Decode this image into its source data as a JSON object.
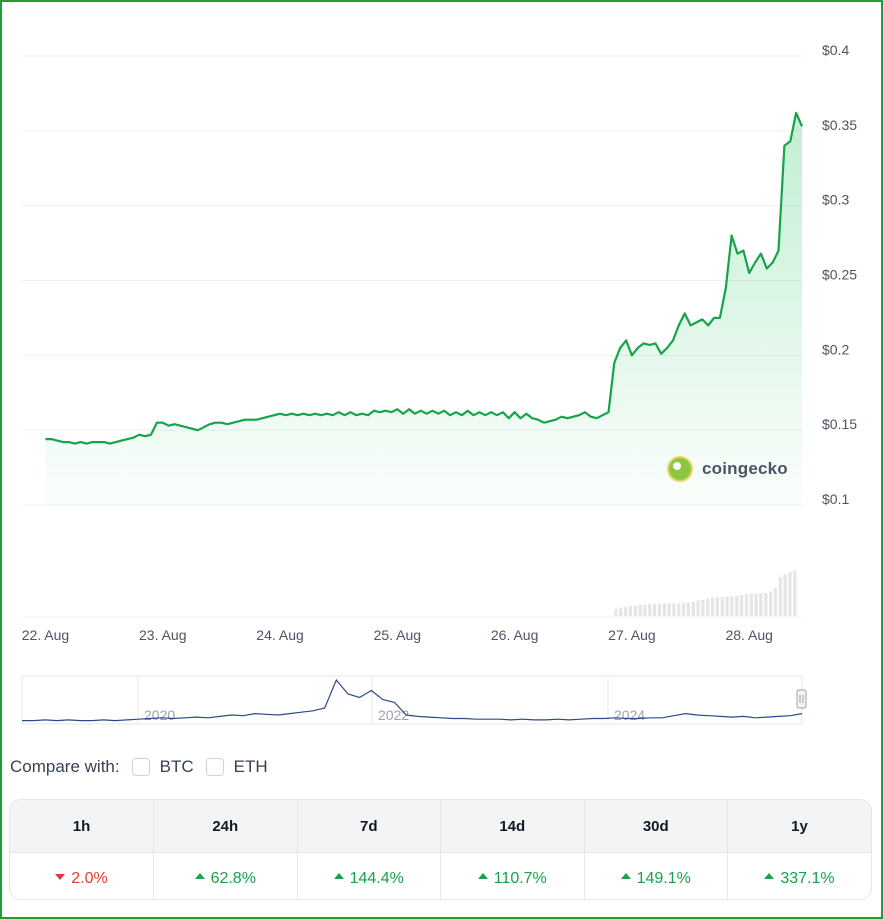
{
  "chart_data": {
    "type": "line",
    "series": [
      {
        "values": [
          [
            0.0,
            0.144
          ],
          [
            0.05,
            0.144
          ],
          [
            0.1,
            0.143
          ],
          [
            0.15,
            0.142
          ],
          [
            0.2,
            0.142
          ],
          [
            0.25,
            0.141
          ],
          [
            0.3,
            0.142
          ],
          [
            0.35,
            0.141
          ],
          [
            0.4,
            0.142
          ],
          [
            0.45,
            0.142
          ],
          [
            0.5,
            0.142
          ],
          [
            0.55,
            0.141
          ],
          [
            0.6,
            0.142
          ],
          [
            0.65,
            0.143
          ],
          [
            0.7,
            0.144
          ],
          [
            0.75,
            0.145
          ],
          [
            0.8,
            0.147
          ],
          [
            0.85,
            0.146
          ],
          [
            0.9,
            0.147
          ],
          [
            0.95,
            0.155
          ],
          [
            1.0,
            0.155
          ],
          [
            1.05,
            0.153
          ],
          [
            1.1,
            0.154
          ],
          [
            1.15,
            0.153
          ],
          [
            1.2,
            0.152
          ],
          [
            1.25,
            0.151
          ],
          [
            1.3,
            0.15
          ],
          [
            1.35,
            0.152
          ],
          [
            1.4,
            0.154
          ],
          [
            1.45,
            0.155
          ],
          [
            1.5,
            0.155
          ],
          [
            1.55,
            0.154
          ],
          [
            1.6,
            0.155
          ],
          [
            1.65,
            0.156
          ],
          [
            1.7,
            0.157
          ],
          [
            1.75,
            0.157
          ],
          [
            1.8,
            0.157
          ],
          [
            1.85,
            0.158
          ],
          [
            1.9,
            0.159
          ],
          [
            1.95,
            0.16
          ],
          [
            2.0,
            0.161
          ],
          [
            2.05,
            0.16
          ],
          [
            2.1,
            0.161
          ],
          [
            2.15,
            0.16
          ],
          [
            2.2,
            0.161
          ],
          [
            2.25,
            0.16
          ],
          [
            2.3,
            0.161
          ],
          [
            2.35,
            0.16
          ],
          [
            2.4,
            0.161
          ],
          [
            2.45,
            0.16
          ],
          [
            2.5,
            0.162
          ],
          [
            2.55,
            0.16
          ],
          [
            2.6,
            0.162
          ],
          [
            2.65,
            0.16
          ],
          [
            2.7,
            0.161
          ],
          [
            2.75,
            0.16
          ],
          [
            2.8,
            0.163
          ],
          [
            2.85,
            0.162
          ],
          [
            2.9,
            0.163
          ],
          [
            2.95,
            0.162
          ],
          [
            3.0,
            0.164
          ],
          [
            3.05,
            0.161
          ],
          [
            3.1,
            0.164
          ],
          [
            3.15,
            0.161
          ],
          [
            3.2,
            0.163
          ],
          [
            3.25,
            0.161
          ],
          [
            3.3,
            0.163
          ],
          [
            3.35,
            0.161
          ],
          [
            3.4,
            0.163
          ],
          [
            3.45,
            0.16
          ],
          [
            3.5,
            0.162
          ],
          [
            3.55,
            0.16
          ],
          [
            3.6,
            0.163
          ],
          [
            3.65,
            0.16
          ],
          [
            3.7,
            0.162
          ],
          [
            3.75,
            0.16
          ],
          [
            3.8,
            0.162
          ],
          [
            3.85,
            0.16
          ],
          [
            3.9,
            0.162
          ],
          [
            3.95,
            0.158
          ],
          [
            4.0,
            0.162
          ],
          [
            4.05,
            0.158
          ],
          [
            4.1,
            0.161
          ],
          [
            4.15,
            0.158
          ],
          [
            4.2,
            0.157
          ],
          [
            4.25,
            0.155
          ],
          [
            4.3,
            0.156
          ],
          [
            4.35,
            0.157
          ],
          [
            4.4,
            0.159
          ],
          [
            4.45,
            0.158
          ],
          [
            4.5,
            0.159
          ],
          [
            4.55,
            0.16
          ],
          [
            4.6,
            0.162
          ],
          [
            4.65,
            0.159
          ],
          [
            4.7,
            0.158
          ],
          [
            4.75,
            0.16
          ],
          [
            4.8,
            0.162
          ],
          [
            4.85,
            0.195
          ],
          [
            4.9,
            0.205
          ],
          [
            4.95,
            0.21
          ],
          [
            5.0,
            0.2
          ],
          [
            5.05,
            0.205
          ],
          [
            5.1,
            0.208
          ],
          [
            5.15,
            0.207
          ],
          [
            5.2,
            0.208
          ],
          [
            5.25,
            0.201
          ],
          [
            5.3,
            0.205
          ],
          [
            5.35,
            0.21
          ],
          [
            5.4,
            0.22
          ],
          [
            5.45,
            0.228
          ],
          [
            5.5,
            0.22
          ],
          [
            5.55,
            0.222
          ],
          [
            5.6,
            0.224
          ],
          [
            5.65,
            0.22
          ],
          [
            5.7,
            0.225
          ],
          [
            5.75,
            0.225
          ],
          [
            5.8,
            0.245
          ],
          [
            5.85,
            0.28
          ],
          [
            5.9,
            0.268
          ],
          [
            5.95,
            0.27
          ],
          [
            6.0,
            0.255
          ],
          [
            6.05,
            0.262
          ],
          [
            6.1,
            0.268
          ],
          [
            6.15,
            0.258
          ],
          [
            6.2,
            0.262
          ],
          [
            6.25,
            0.27
          ],
          [
            6.3,
            0.34
          ],
          [
            6.35,
            0.343
          ],
          [
            6.4,
            0.362
          ],
          [
            6.45,
            0.353
          ]
        ]
      }
    ],
    "xlim": [
      -0.2,
      6.45
    ],
    "ylim": [
      0.1,
      0.4
    ],
    "y_ticks": [
      "$0.4",
      "$0.35",
      "$0.3",
      "$0.25",
      "$0.2",
      "$0.15",
      "$0.1"
    ],
    "y_tick_values": [
      0.4,
      0.35,
      0.3,
      0.25,
      0.2,
      0.15,
      0.1
    ],
    "x_ticks": [
      "22. Aug",
      "23. Aug",
      "24. Aug",
      "25. Aug",
      "26. Aug",
      "27. Aug",
      "28. Aug"
    ],
    "x_tick_values": [
      0,
      1,
      2,
      3,
      4,
      5,
      6
    ],
    "volume": [
      0.1,
      0.12,
      0.13,
      0.14,
      0.15,
      0.16,
      0.16,
      0.17,
      0.17,
      0.17,
      0.18,
      0.18,
      0.18,
      0.18,
      0.19,
      0.19,
      0.2,
      0.22,
      0.23,
      0.25,
      0.26,
      0.27,
      0.27,
      0.28,
      0.28,
      0.29,
      0.3,
      0.31,
      0.32,
      0.32,
      0.33,
      0.33,
      0.35,
      0.4,
      0.55,
      0.6,
      0.63,
      0.65
    ],
    "volume_start": 4.85,
    "line_color": "#16a34a",
    "grid": true
  },
  "navigator": {
    "labels": [
      "2020",
      "2022",
      "2024"
    ],
    "values": [
      0.02,
      0.02,
      0.03,
      0.02,
      0.03,
      0.02,
      0.02,
      0.03,
      0.02,
      0.03,
      0.04,
      0.05,
      0.06,
      0.05,
      0.06,
      0.07,
      0.06,
      0.08,
      0.1,
      0.09,
      0.12,
      0.11,
      0.1,
      0.12,
      0.14,
      0.16,
      0.2,
      0.6,
      0.4,
      0.35,
      0.45,
      0.32,
      0.28,
      0.1,
      0.08,
      0.07,
      0.06,
      0.05,
      0.05,
      0.04,
      0.04,
      0.04,
      0.03,
      0.04,
      0.03,
      0.03,
      0.04,
      0.03,
      0.04,
      0.05,
      0.05,
      0.06,
      0.05,
      0.05,
      0.06,
      0.06,
      0.09,
      0.12,
      0.1,
      0.09,
      0.08,
      0.07,
      0.08,
      0.06,
      0.07,
      0.08,
      0.09,
      0.12
    ],
    "line_color": "#2c4a8a"
  },
  "compare": {
    "label": "Compare with:",
    "options": [
      "BTC",
      "ETH"
    ]
  },
  "performance": {
    "headers": [
      "1h",
      "24h",
      "7d",
      "14d",
      "30d",
      "1y"
    ],
    "values": [
      "2.0%",
      "62.8%",
      "144.4%",
      "110.7%",
      "149.1%",
      "337.1%"
    ],
    "directions": [
      "down",
      "up",
      "up",
      "up",
      "up",
      "up"
    ]
  },
  "branding": {
    "watermark": "coingecko"
  }
}
